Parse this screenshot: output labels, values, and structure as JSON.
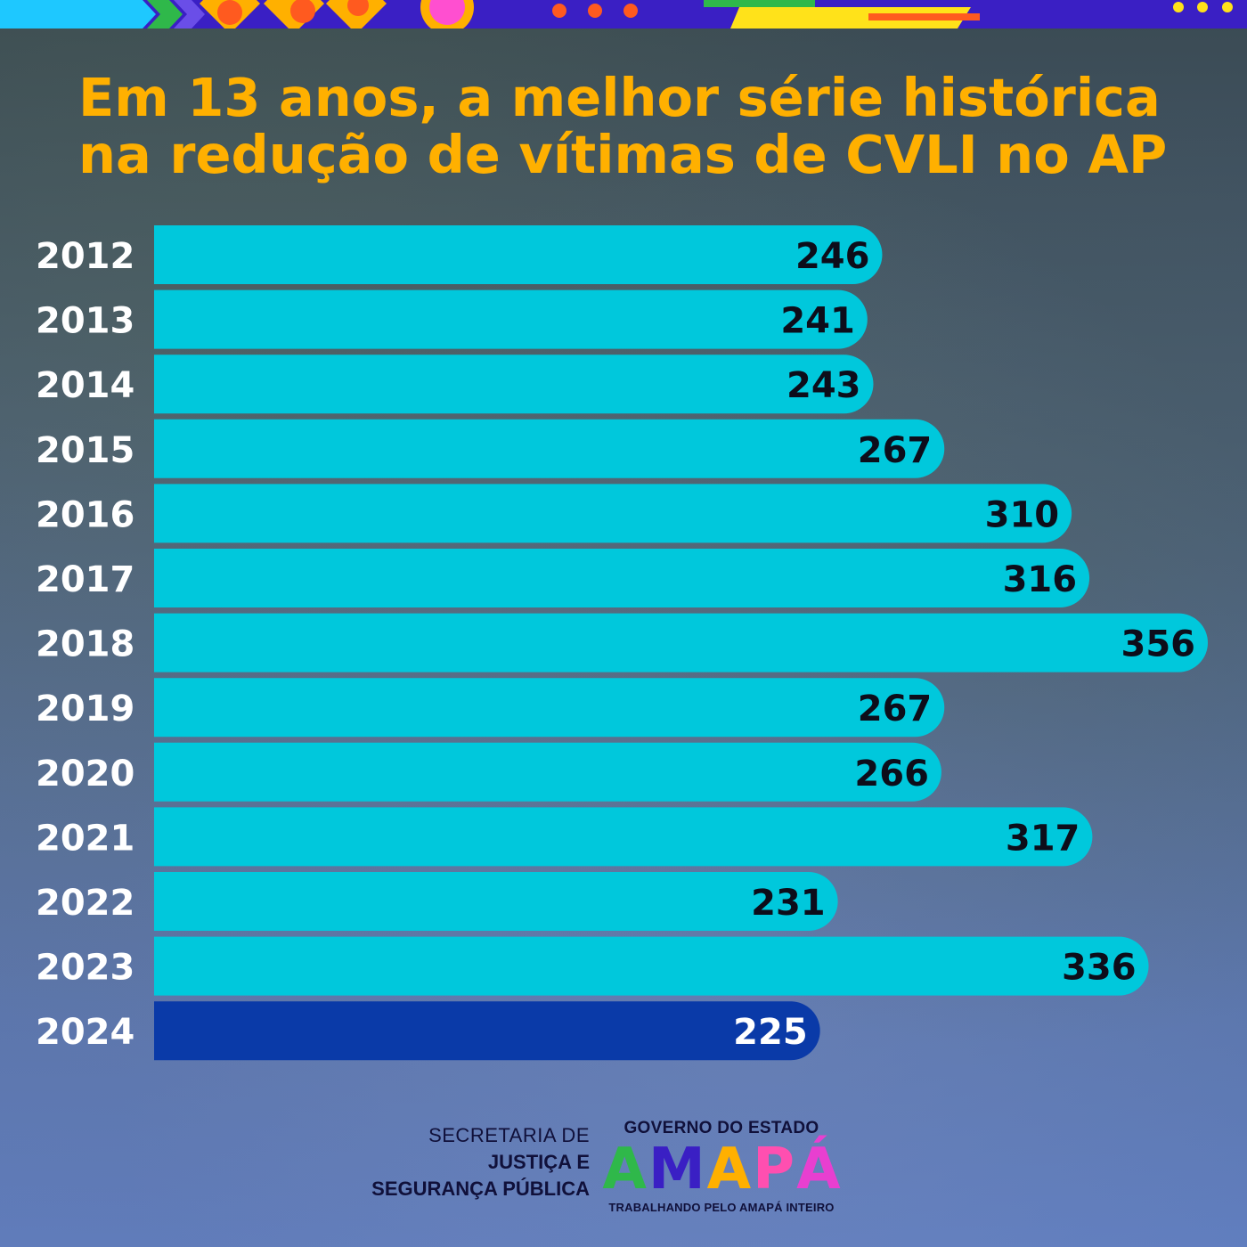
{
  "title_lines": [
    "Em 13 anos, a melhor série histórica",
    "na redução de vítimas de CVLI no AP"
  ],
  "colors": {
    "bar": "#00c8dc",
    "bar_highlight": "#0a3aa8",
    "title": "#ffb000",
    "band": "#3a1fc4"
  },
  "chart_data": {
    "type": "bar",
    "orientation": "horizontal",
    "title": "Em 13 anos, a melhor série histórica na redução de vítimas de CVLI no AP",
    "categories": [
      "2012",
      "2013",
      "2014",
      "2015",
      "2016",
      "2017",
      "2018",
      "2019",
      "2020",
      "2021",
      "2022",
      "2023",
      "2024"
    ],
    "values": [
      246,
      241,
      243,
      267,
      310,
      316,
      356,
      267,
      266,
      317,
      231,
      336,
      225
    ],
    "highlight_category": "2024",
    "data_labels": true,
    "grid": false,
    "legend": "none",
    "xlabel": "",
    "ylabel": ""
  },
  "footer": {
    "secretaria_line1": "SECRETARIA DE",
    "secretaria_line2": "JUSTIÇA E",
    "secretaria_line3": "SEGURANÇA PÚBLICA",
    "gov_top": "GOVERNO DO ESTADO",
    "gov_logo_letters": [
      "A",
      "M",
      "A",
      "P",
      "Á"
    ],
    "gov_logo_colors": [
      "#2fb84a",
      "#3a1fc4",
      "#ffb000",
      "#ff4fb0",
      "#e83fd0"
    ],
    "gov_bottom": "TRABALHANDO PELO AMAPÁ INTEIRO"
  }
}
